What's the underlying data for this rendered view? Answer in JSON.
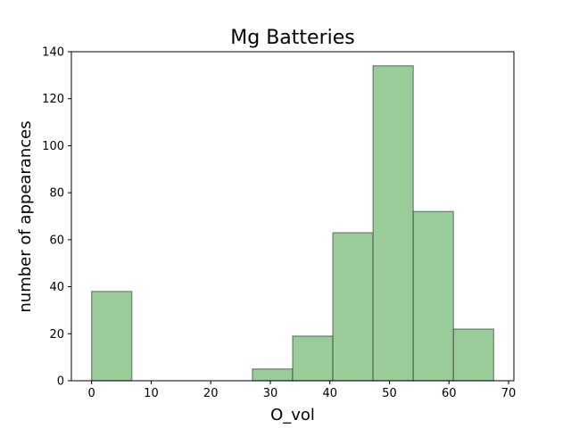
{
  "chart_data": {
    "type": "bar",
    "title": "Mg Batteries",
    "xlabel": "O_vol",
    "ylabel": "number of appearances",
    "bins": [
      {
        "start": 0.0,
        "end": 6.75,
        "count": 38
      },
      {
        "start": 6.75,
        "end": 13.5,
        "count": 0
      },
      {
        "start": 13.5,
        "end": 20.25,
        "count": 0
      },
      {
        "start": 20.25,
        "end": 27.0,
        "count": 0
      },
      {
        "start": 27.0,
        "end": 33.75,
        "count": 5
      },
      {
        "start": 33.75,
        "end": 40.5,
        "count": 19
      },
      {
        "start": 40.5,
        "end": 47.25,
        "count": 63
      },
      {
        "start": 47.25,
        "end": 54.0,
        "count": 134
      },
      {
        "start": 54.0,
        "end": 60.75,
        "count": 72
      },
      {
        "start": 60.75,
        "end": 67.5,
        "count": 22
      }
    ],
    "xlim": [
      -3.4,
      70.9
    ],
    "ylim": [
      0,
      140
    ],
    "xticks": [
      0,
      10,
      20,
      30,
      40,
      50,
      60,
      70
    ],
    "yticks": [
      0,
      20,
      40,
      60,
      80,
      100,
      120,
      140
    ],
    "bar_color": "#99cc99",
    "edge_color": "#2f3f2f",
    "grid": false,
    "legend": "none"
  }
}
